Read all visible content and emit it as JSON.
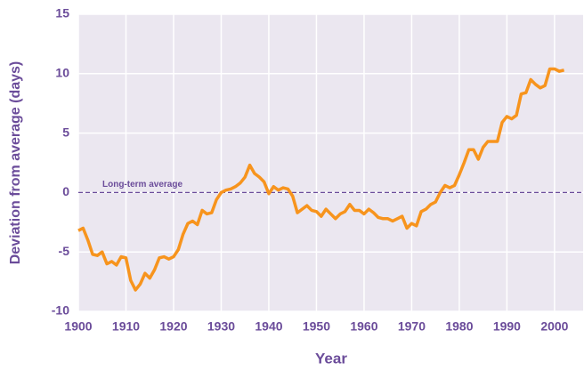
{
  "chart_data": {
    "type": "line",
    "xlabel": "Year",
    "ylabel": "Deviation from average (days)",
    "annotation": "Long-term average",
    "hline": 0,
    "x": [
      1900,
      1901,
      1902,
      1903,
      1904,
      1905,
      1906,
      1907,
      1908,
      1909,
      1910,
      1911,
      1912,
      1913,
      1914,
      1915,
      1916,
      1917,
      1918,
      1919,
      1920,
      1921,
      1922,
      1923,
      1924,
      1925,
      1926,
      1927,
      1928,
      1929,
      1930,
      1931,
      1932,
      1933,
      1934,
      1935,
      1936,
      1937,
      1938,
      1939,
      1940,
      1941,
      1942,
      1943,
      1944,
      1945,
      1946,
      1947,
      1948,
      1949,
      1950,
      1951,
      1952,
      1953,
      1954,
      1955,
      1956,
      1957,
      1958,
      1959,
      1960,
      1961,
      1962,
      1963,
      1964,
      1965,
      1966,
      1967,
      1968,
      1969,
      1970,
      1971,
      1972,
      1973,
      1974,
      1975,
      1976,
      1977,
      1978,
      1979,
      1980,
      1981,
      1982,
      1983,
      1984,
      1985,
      1986,
      1987,
      1988,
      1989,
      1990,
      1991,
      1992,
      1993,
      1994,
      1995,
      1996,
      1997,
      1998,
      1999,
      2000,
      2001,
      2002
    ],
    "series": [
      {
        "name": "Deviation",
        "color": "#f7941d",
        "values": [
          -3.2,
          -3.0,
          -4.0,
          -5.2,
          -5.3,
          -5.0,
          -6.0,
          -5.8,
          -6.1,
          -5.4,
          -5.5,
          -7.4,
          -8.2,
          -7.7,
          -6.8,
          -7.2,
          -6.5,
          -5.5,
          -5.4,
          -5.6,
          -5.4,
          -4.8,
          -3.5,
          -2.6,
          -2.4,
          -2.7,
          -1.5,
          -1.8,
          -1.7,
          -0.6,
          0.0,
          0.2,
          0.3,
          0.5,
          0.8,
          1.3,
          2.3,
          1.6,
          1.3,
          0.9,
          -0.1,
          0.5,
          0.2,
          0.4,
          0.3,
          -0.3,
          -1.7,
          -1.4,
          -1.1,
          -1.5,
          -1.6,
          -2.0,
          -1.4,
          -1.8,
          -2.2,
          -1.8,
          -1.6,
          -1.0,
          -1.5,
          -1.5,
          -1.8,
          -1.4,
          -1.7,
          -2.1,
          -2.2,
          -2.2,
          -2.4,
          -2.2,
          -2.0,
          -3.0,
          -2.6,
          -2.8,
          -1.6,
          -1.4,
          -1.0,
          -0.8,
          0.0,
          0.6,
          0.4,
          0.6,
          1.5,
          2.5,
          3.6,
          3.6,
          2.8,
          3.8,
          4.3,
          4.3,
          4.3,
          5.9,
          6.4,
          6.2,
          6.5,
          8.3,
          8.4,
          9.5,
          9.1,
          8.8,
          9.0,
          10.4,
          10.4,
          10.2,
          10.3
        ]
      }
    ],
    "xlim": [
      1900,
      2006
    ],
    "xticks": [
      1900,
      1910,
      1920,
      1930,
      1940,
      1950,
      1960,
      1970,
      1980,
      1990,
      2000
    ],
    "ylim": [
      -10,
      15
    ],
    "yticks": [
      -10,
      -5,
      0,
      5,
      10,
      15
    ],
    "grid": true
  }
}
